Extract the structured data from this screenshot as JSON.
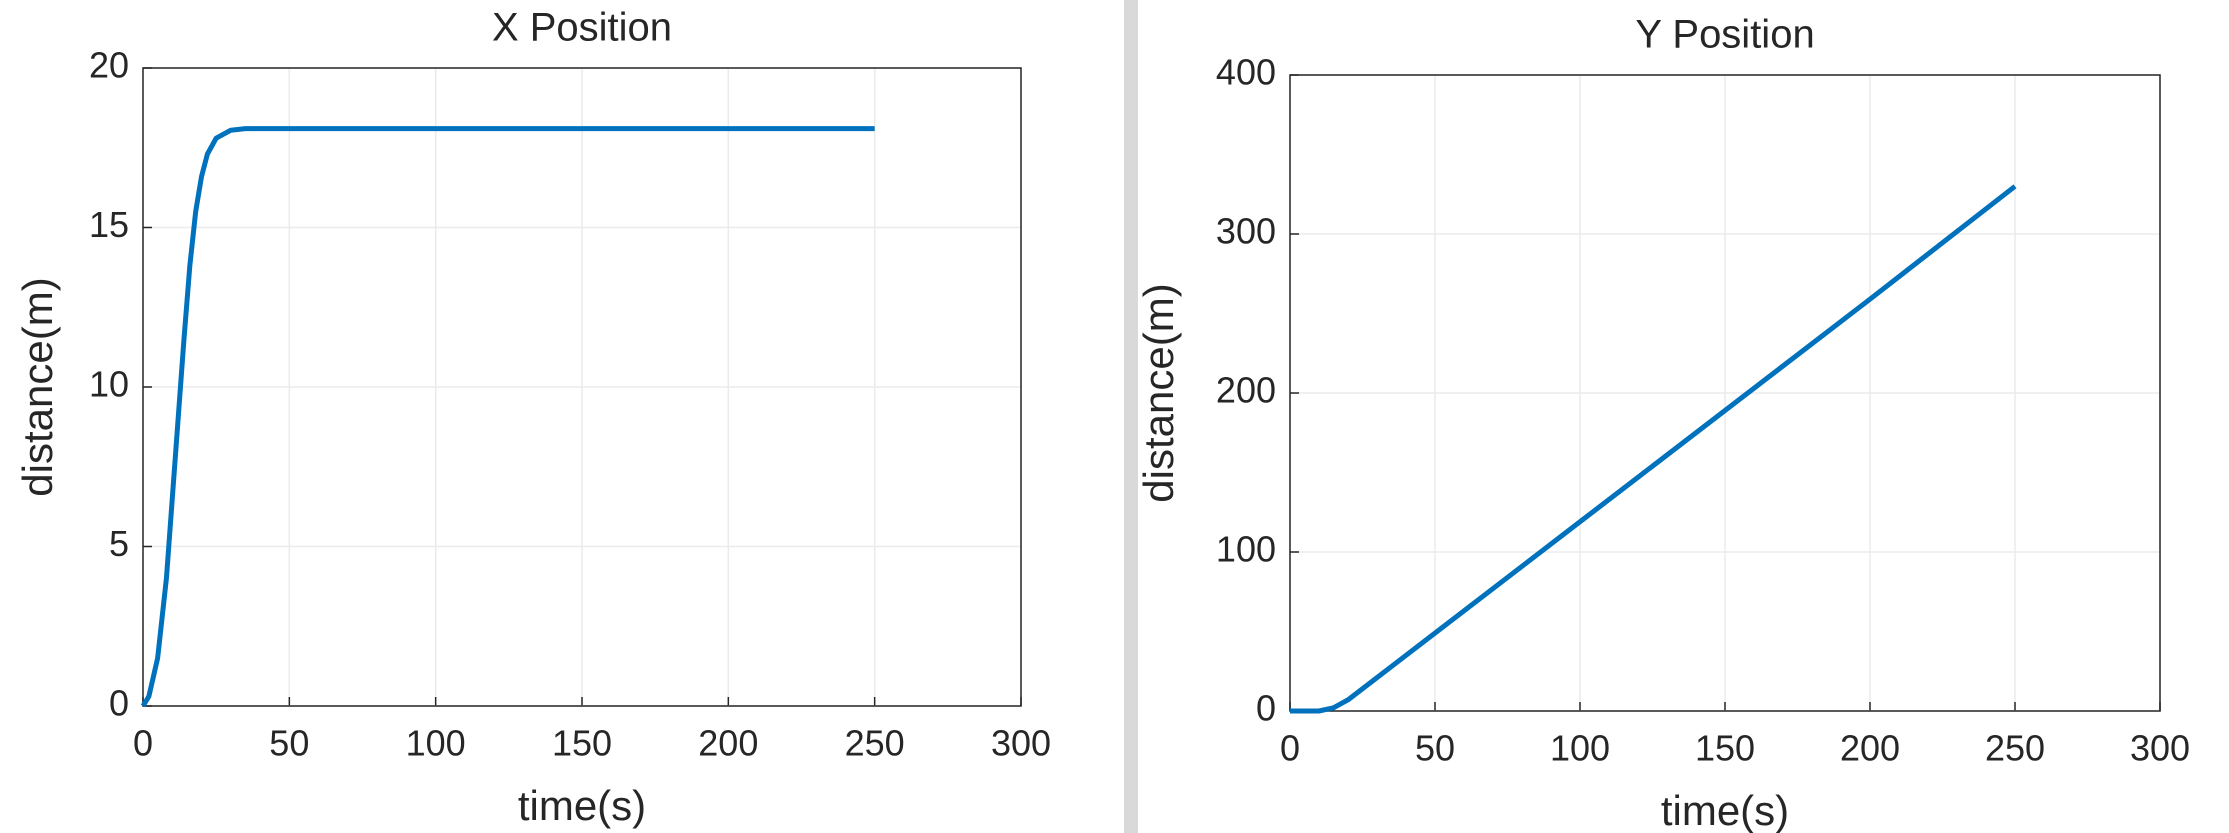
{
  "chart_data": [
    {
      "type": "line",
      "title": "X Position",
      "x_label": "time(s)",
      "y_label": "distance(m)",
      "x": [
        0,
        2,
        5,
        8,
        10,
        12,
        14,
        16,
        18,
        20,
        22,
        25,
        30,
        35,
        50,
        100,
        150,
        200,
        250
      ],
      "values": [
        0,
        0.3,
        1.5,
        4,
        6.5,
        9,
        11.5,
        13.8,
        15.5,
        16.6,
        17.3,
        17.8,
        18.05,
        18.1,
        18.1,
        18.1,
        18.1,
        18.1,
        18.1
      ],
      "color": "#0072bd",
      "xlim": [
        0,
        300
      ],
      "xticks": [
        0,
        50,
        100,
        150,
        200,
        250,
        300
      ],
      "ylim": [
        0,
        20
      ],
      "yticks": [
        0,
        5,
        10,
        15,
        20
      ],
      "grid": true
    },
    {
      "type": "line",
      "title": "Y Position",
      "x_label": "time(s)",
      "y_label": "distance(m)",
      "x": [
        0,
        10,
        15,
        20,
        25,
        30,
        100,
        150,
        200,
        250
      ],
      "values": [
        0,
        0,
        2,
        7,
        14,
        21,
        119,
        189,
        259,
        330
      ],
      "color": "#0072bd",
      "xlim": [
        0,
        300
      ],
      "xticks": [
        0,
        50,
        100,
        150,
        200,
        250,
        300
      ],
      "ylim": [
        0,
        400
      ],
      "yticks": [
        0,
        100,
        200,
        300,
        400
      ],
      "grid": true
    }
  ]
}
